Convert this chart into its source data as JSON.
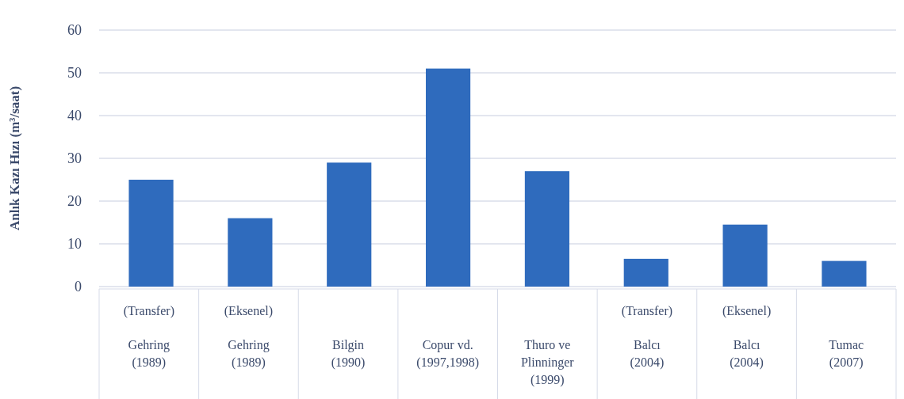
{
  "chart_data": {
    "type": "bar",
    "ylabel": "Anlık Kazı Hızı (m³/saat)",
    "categories": [
      "(Transfer)\nGehring\n(1989)",
      "(Eksenel)\nGehring\n(1989)",
      "\nBilgin\n(1990)",
      "\nCopur vd.\n(1997,1998)",
      "\nThuro ve\nPlinninger\n(1999)",
      "(Transfer)\nBalcı\n(2004)",
      "(Eksenel)\nBalcı\n(2004)",
      "\nTumac\n(2007)"
    ],
    "values": [
      25,
      16,
      29,
      51,
      27,
      6.5,
      14.5,
      6
    ],
    "color": "#2f6bbd",
    "ylim": [
      0,
      60
    ],
    "yticks": [
      0,
      10,
      20,
      30,
      40,
      50,
      60
    ],
    "grid": "y"
  }
}
